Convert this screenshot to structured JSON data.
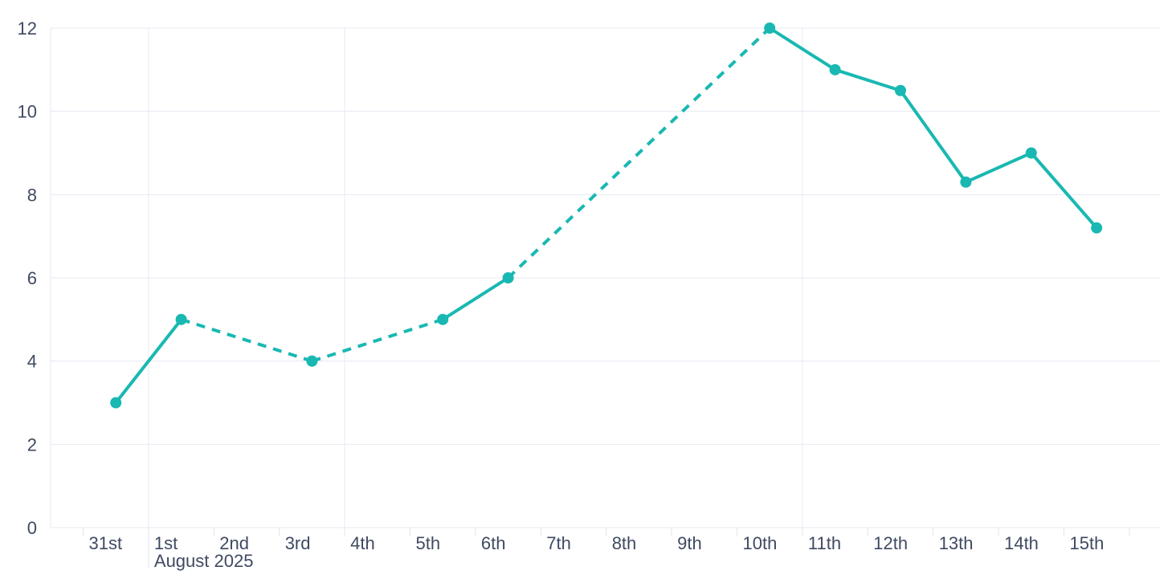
{
  "canvas": {
    "background": "#ffffff"
  },
  "colors": {
    "series": "#19b8b2",
    "axis_text": "#3f4a61",
    "gridline": "#e6e9f2",
    "axis_line": "#e1e5f0"
  },
  "chart_data": {
    "type": "line",
    "title": "",
    "x_axis": {
      "unit": "day",
      "month_label": "August 2025",
      "month_label_tick": 1,
      "ticks": [
        {
          "label": "31st",
          "gridline": false,
          "long_tick": false
        },
        {
          "label": "1st",
          "gridline": true,
          "long_tick": true
        },
        {
          "label": "2nd",
          "gridline": false,
          "long_tick": false
        },
        {
          "label": "3rd",
          "gridline": false,
          "long_tick": false
        },
        {
          "label": "4th",
          "gridline": true,
          "long_tick": false
        },
        {
          "label": "5th",
          "gridline": false,
          "long_tick": false
        },
        {
          "label": "6th",
          "gridline": false,
          "long_tick": false
        },
        {
          "label": "7th",
          "gridline": false,
          "long_tick": false
        },
        {
          "label": "8th",
          "gridline": false,
          "long_tick": false
        },
        {
          "label": "9th",
          "gridline": false,
          "long_tick": false
        },
        {
          "label": "10th",
          "gridline": false,
          "long_tick": false
        },
        {
          "label": "11th",
          "gridline": true,
          "long_tick": false
        },
        {
          "label": "12th",
          "gridline": false,
          "long_tick": false
        },
        {
          "label": "13th",
          "gridline": false,
          "long_tick": false
        },
        {
          "label": "14th",
          "gridline": false,
          "long_tick": false
        },
        {
          "label": "15th",
          "gridline": false,
          "long_tick": false
        },
        {
          "label": "",
          "gridline": false,
          "long_tick": false
        }
      ]
    },
    "y_axis": {
      "min": 0,
      "max": 12,
      "tick_interval": 2,
      "tick_labels": [
        "0",
        "2",
        "4",
        "6",
        "8",
        "10",
        "12"
      ]
    },
    "grid": "on",
    "legend": "none",
    "series": [
      {
        "name": "daily-values",
        "color": "#19b8b2",
        "marker_radius": 7,
        "line_width": 4,
        "points": [
          {
            "x_label": "31st",
            "slot": 0,
            "value": 3
          },
          {
            "x_label": "1st",
            "slot": 1,
            "value": 5
          },
          {
            "x_label": "3rd",
            "slot": 3,
            "value": 4
          },
          {
            "x_label": "5th",
            "slot": 5,
            "value": 5
          },
          {
            "x_label": "6th",
            "slot": 6,
            "value": 6
          },
          {
            "x_label": "10th",
            "slot": 10,
            "value": 12
          },
          {
            "x_label": "11th",
            "slot": 11,
            "value": 11
          },
          {
            "x_label": "12th",
            "slot": 12,
            "value": 10.5
          },
          {
            "x_label": "13th",
            "slot": 13,
            "value": 8.3
          },
          {
            "x_label": "14th",
            "slot": 14,
            "value": 9
          },
          {
            "x_label": "15th",
            "slot": 15,
            "value": 7.2
          }
        ],
        "segments": [
          {
            "from": "31st",
            "to": "1st",
            "style": "solid"
          },
          {
            "from": "1st",
            "to": "3rd",
            "style": "dashed"
          },
          {
            "from": "3rd",
            "to": "5th",
            "style": "dashed"
          },
          {
            "from": "5th",
            "to": "6th",
            "style": "solid"
          },
          {
            "from": "6th",
            "to": "10th",
            "style": "dashed"
          },
          {
            "from": "10th",
            "to": "11th",
            "style": "solid"
          },
          {
            "from": "11th",
            "to": "12th",
            "style": "solid"
          },
          {
            "from": "12th",
            "to": "13th",
            "style": "solid"
          },
          {
            "from": "13th",
            "to": "14th",
            "style": "solid"
          },
          {
            "from": "14th",
            "to": "15th",
            "style": "solid"
          }
        ]
      }
    ]
  }
}
